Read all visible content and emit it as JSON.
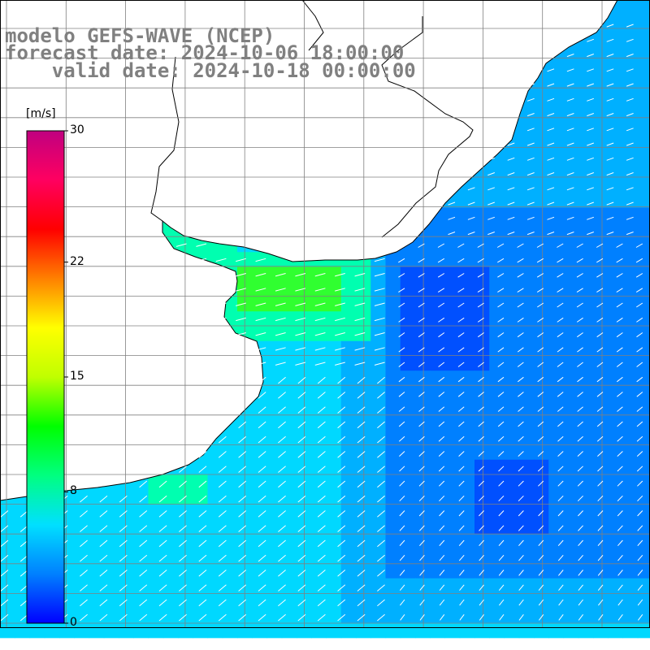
{
  "header": {
    "line1": "modelo GEFS-WAVE (NCEP)",
    "line2": "forecast date: 2024-10-06 18:00:00",
    "line3": "    valid date: 2024-10-18 00:00:00"
  },
  "colorbar": {
    "unit": "[m/s]",
    "ticks": [
      {
        "label": "30",
        "value": 30
      },
      {
        "label": "22",
        "value": 22
      },
      {
        "label": "15",
        "value": 15
      },
      {
        "label": "8",
        "value": 8
      },
      {
        "label": "0",
        "value": 0
      }
    ],
    "stops": [
      "#0000ff",
      "#0080ff",
      "#00e0ff",
      "#00ff80",
      "#00ff00",
      "#c0ff00",
      "#ffff00",
      "#ff8000",
      "#ff0000",
      "#ff0060",
      "#c00080"
    ]
  },
  "map": {
    "land_color": "#ffffff",
    "coast_color": "#000000",
    "grid_color": "#808080",
    "vector_color": "#ffffff",
    "field_colors": {
      "dark_blue": "#0050ff",
      "blue": "#0080ff",
      "light_blue": "#00b0ff",
      "cyan": "#00d8ff",
      "aqua_green": "#00ffb0",
      "green": "#30ff30"
    }
  }
}
